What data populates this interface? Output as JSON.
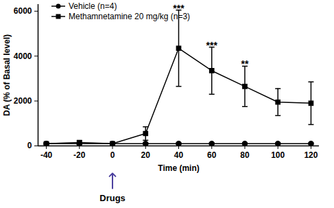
{
  "chart_data": {
    "type": "line",
    "x_label": "Time (min)",
    "y_label": "DA (% of Basal level)",
    "x": [
      -40,
      -20,
      0,
      20,
      40,
      60,
      80,
      100,
      120
    ],
    "series": [
      {
        "name": "Vehicle (n=4)",
        "color": "#000000",
        "marker": "circle",
        "values": [
          100,
          100,
          100,
          100,
          100,
          100,
          100,
          100,
          100
        ],
        "error": [
          30,
          30,
          30,
          30,
          30,
          30,
          30,
          30,
          30
        ]
      },
      {
        "name": "Methamnetamine 20 mg/kg (n=3)",
        "color": "#000000",
        "marker": "square",
        "values": [
          100,
          150,
          100,
          550,
          4350,
          3350,
          2650,
          1950,
          1900
        ],
        "error": [
          40,
          80,
          50,
          300,
          1700,
          1050,
          900,
          600,
          950
        ]
      }
    ],
    "xlim": [
      -45,
      125
    ],
    "xticks": [
      -40,
      -20,
      0,
      20,
      40,
      60,
      80,
      100,
      120
    ],
    "ylim": [
      0,
      6300
    ],
    "yticks": [
      0,
      2000,
      4000,
      6000
    ],
    "legend": "top-left",
    "annotations": [
      {
        "text": "***",
        "x": 40,
        "y": 6050
      },
      {
        "text": "***",
        "x": 60,
        "y": 4400
      },
      {
        "text": "**",
        "x": 80,
        "y": 3550
      },
      {
        "text": "Drugs",
        "x": 0
      }
    ]
  }
}
